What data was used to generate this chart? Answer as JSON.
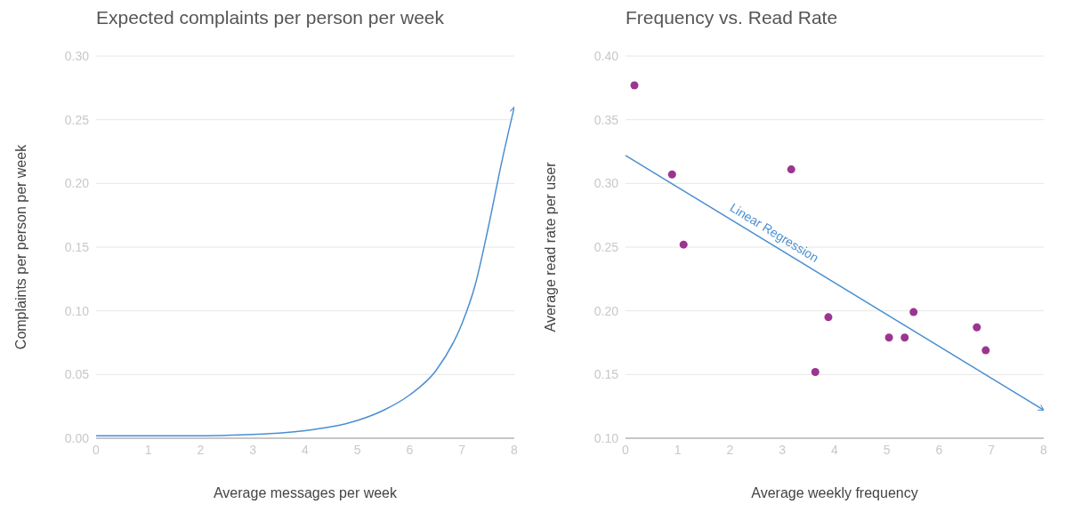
{
  "chart_data": [
    {
      "type": "line",
      "title": "Expected complaints per person per week",
      "xlabel": "Average messages per week",
      "ylabel": "Complaints per person per week",
      "x": [
        0,
        1,
        2,
        3,
        3.5,
        4,
        4.5,
        5,
        5.5,
        6,
        6.5,
        7,
        7.25,
        7.5,
        7.75,
        8
      ],
      "values": [
        0.002,
        0.002,
        0.002,
        0.003,
        0.004,
        0.006,
        0.009,
        0.014,
        0.022,
        0.034,
        0.053,
        0.09,
        0.12,
        0.165,
        0.215,
        0.26
      ],
      "color": "#4a8fd0",
      "xlim": [
        0,
        8
      ],
      "xticks": [
        0,
        1,
        2,
        3,
        4,
        5,
        6,
        7,
        8
      ],
      "ylim": [
        0,
        0.3
      ],
      "yticks": [
        {
          "value": 0,
          "label": "0.00"
        },
        {
          "value": 0.05,
          "label": "0.05"
        },
        {
          "value": 0.1,
          "label": "0.10"
        },
        {
          "value": 0.15,
          "label": "0.15"
        },
        {
          "value": 0.2,
          "label": "0.20"
        },
        {
          "value": 0.25,
          "label": "0.25"
        },
        {
          "value": 0.3,
          "label": "0.30"
        }
      ],
      "grid": "y",
      "marker": "none"
    },
    {
      "type": "scatter",
      "title": "Frequency vs. Read Rate",
      "xlabel": "Average weekly frequency",
      "ylabel": "Average read rate per user",
      "series": [
        {
          "color": "#9b3590",
          "x": [
            0.17,
            0.89,
            1.11,
            3.17,
            3.63,
            3.88,
            5.04,
            5.34,
            5.51,
            6.72,
            6.89
          ],
          "values": [
            0.377,
            0.307,
            0.252,
            0.311,
            0.152,
            0.195,
            0.179,
            0.179,
            0.199,
            0.187,
            0.169
          ]
        },
        {
          "type": "line",
          "name": "Linear Regression",
          "color": "#4a8fd0",
          "x": [
            0,
            8
          ],
          "values": [
            0.322,
            0.122
          ]
        }
      ],
      "xlim": [
        0,
        8
      ],
      "xticks": [
        0,
        1,
        2,
        3,
        4,
        5,
        6,
        7,
        8
      ],
      "ylim": [
        0.1,
        0.4
      ],
      "yticks": [
        {
          "value": 0.1,
          "label": "0.10"
        },
        {
          "value": 0.15,
          "label": "0.15"
        },
        {
          "value": 0.2,
          "label": "0.20"
        },
        {
          "value": 0.25,
          "label": "0.25"
        },
        {
          "value": 0.3,
          "label": "0.30"
        },
        {
          "value": 0.35,
          "label": "0.35"
        },
        {
          "value": 0.4,
          "label": "0.40"
        }
      ],
      "grid": "y"
    }
  ]
}
